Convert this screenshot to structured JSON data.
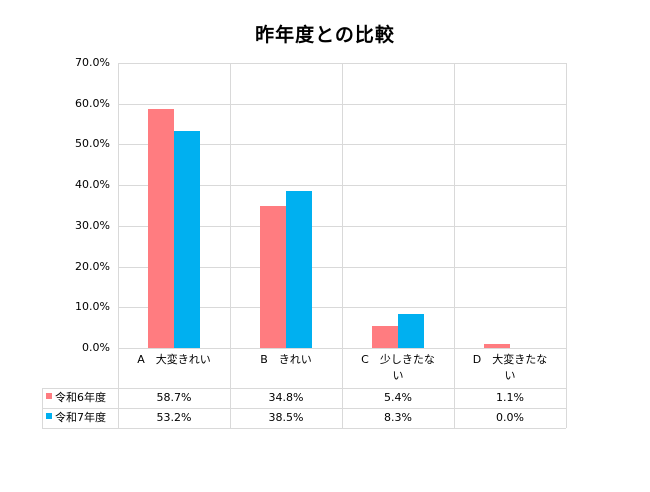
{
  "title": "昨年度との比較",
  "colors": {
    "series1": "#ff7c80",
    "series2": "#00b0f0",
    "grid": "#d9d9d9"
  },
  "y_ticks": [
    "70.0%",
    "60.0%",
    "50.0%",
    "40.0%",
    "30.0%",
    "20.0%",
    "10.0%",
    "0.0%"
  ],
  "categories": [
    "A　大変きれい",
    "B　きれい",
    "C　少しきたない",
    "D　大変きたない"
  ],
  "table": {
    "rows": [
      {
        "legend": "令和6年度",
        "values": [
          "58.7%",
          "34.8%",
          "5.4%",
          "1.1%"
        ]
      },
      {
        "legend": "令和7年度",
        "values": [
          "53.2%",
          "38.5%",
          "8.3%",
          "0.0%"
        ]
      }
    ]
  },
  "chart_data": {
    "type": "bar",
    "title": "昨年度との比較",
    "categories": [
      "A　大変きれい",
      "B　きれい",
      "C　少しきたない",
      "D　大変きたない"
    ],
    "series": [
      {
        "name": "令和6年度",
        "color": "#ff7c80",
        "values": [
          58.7,
          34.8,
          5.4,
          1.1
        ]
      },
      {
        "name": "令和7年度",
        "color": "#00b0f0",
        "values": [
          53.2,
          38.5,
          8.3,
          0.0
        ]
      }
    ],
    "xlabel": "",
    "ylabel": "",
    "ylim": [
      0,
      70
    ],
    "y_tick_step": 10,
    "y_format": "percent_1dp",
    "grid": true,
    "legend_position": "data-table-below"
  }
}
